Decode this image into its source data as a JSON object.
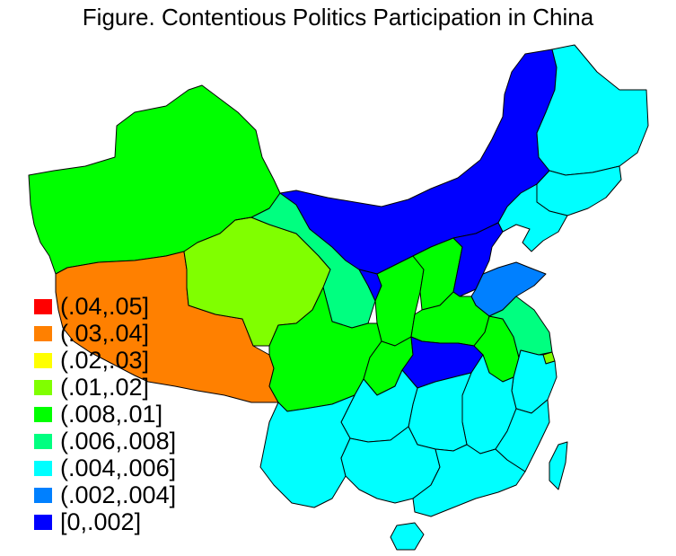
{
  "title": "Figure. Contentious Politics Participation in China",
  "colors": {
    "c_04_05": "#ff0000",
    "c_03_04": "#ff8000",
    "c_02_03": "#ffff00",
    "c_01_02": "#80ff00",
    "c_008_01": "#00ff00",
    "c_006_008": "#00ff80",
    "c_004_006": "#00ffff",
    "c_002_004": "#0080ff",
    "c_0_002": "#0000ff"
  },
  "legend": [
    {
      "label": "(.04,.05]",
      "color": "#ff0000"
    },
    {
      "label": "(.03,.04]",
      "color": "#ff8000"
    },
    {
      "label": "(.02,.03]",
      "color": "#ffff00"
    },
    {
      "label": "(.01,.02]",
      "color": "#80ff00"
    },
    {
      "label": "(.008,.01]",
      "color": "#00ff00"
    },
    {
      "label": "(.006,.008]",
      "color": "#00ff80"
    },
    {
      "label": "(.004,.006]",
      "color": "#00ffff"
    },
    {
      "label": "(.002,.004]",
      "color": "#0080ff"
    },
    {
      "label": "[0,.002]",
      "color": "#0000ff"
    }
  ],
  "regions": [
    {
      "name": "xinjiang",
      "color": "#00ff00"
    },
    {
      "name": "tibet",
      "color": "#ff8000"
    },
    {
      "name": "qinghai",
      "color": "#80ff00"
    },
    {
      "name": "gansu",
      "color": "#00ff80"
    },
    {
      "name": "inner-mongolia",
      "color": "#0000ff"
    },
    {
      "name": "heilongjiang",
      "color": "#00ffff"
    },
    {
      "name": "jilin",
      "color": "#00ffff"
    },
    {
      "name": "liaoning",
      "color": "#00ffff"
    },
    {
      "name": "ningxia",
      "color": "#0000ff"
    },
    {
      "name": "shaanxi",
      "color": "#00ff00"
    },
    {
      "name": "shanxi",
      "color": "#00ff00"
    },
    {
      "name": "hebei",
      "color": "#0000ff"
    },
    {
      "name": "shandong",
      "color": "#0080ff"
    },
    {
      "name": "henan",
      "color": "#00ff00"
    },
    {
      "name": "sichuan",
      "color": "#00ff00"
    },
    {
      "name": "chongqing",
      "color": "#00ff00"
    },
    {
      "name": "hubei",
      "color": "#0000ff"
    },
    {
      "name": "anhui",
      "color": "#00ff00"
    },
    {
      "name": "jiangsu",
      "color": "#00ff80"
    },
    {
      "name": "shanghai",
      "color": "#80ff00"
    },
    {
      "name": "zhejiang",
      "color": "#00ffff"
    },
    {
      "name": "jiangxi",
      "color": "#00ffff"
    },
    {
      "name": "hunan",
      "color": "#00ffff"
    },
    {
      "name": "guizhou",
      "color": "#00ffff"
    },
    {
      "name": "yunnan",
      "color": "#00ffff"
    },
    {
      "name": "guangxi",
      "color": "#00ffff"
    },
    {
      "name": "guangdong",
      "color": "#00ffff"
    },
    {
      "name": "fujian",
      "color": "#00ffff"
    },
    {
      "name": "taiwan",
      "color": "#00ffff"
    },
    {
      "name": "hainan",
      "color": "#00ffff"
    }
  ]
}
